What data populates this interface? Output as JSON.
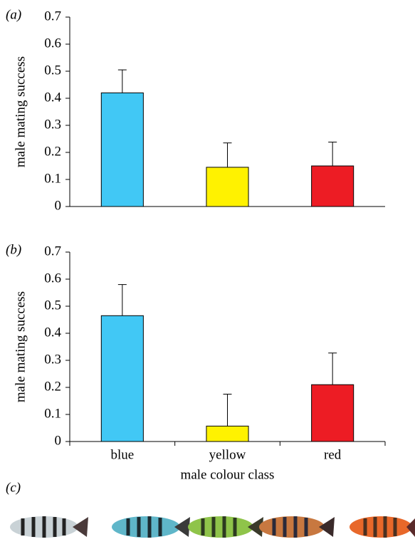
{
  "chart_data": [
    {
      "type": "bar",
      "panel_label": "(a)",
      "ylabel": "male mating success",
      "categories": [
        null,
        null,
        null
      ],
      "values": [
        0.42,
        0.145,
        0.15
      ],
      "errors": [
        0.085,
        0.09,
        0.088
      ],
      "colors": [
        "#41c8f5",
        "#fff200",
        "#ed1c24"
      ],
      "ylim": [
        0,
        0.7
      ],
      "yticks": [
        0,
        0.1,
        0.2,
        0.3,
        0.4,
        0.5,
        0.6,
        0.7
      ]
    },
    {
      "type": "bar",
      "panel_label": "(b)",
      "ylabel": "male mating success",
      "xlabel": "male colour class",
      "categories": [
        "blue",
        "yellow",
        "red"
      ],
      "values": [
        0.465,
        0.057,
        0.21
      ],
      "errors": [
        0.115,
        0.118,
        0.117
      ],
      "colors": [
        "#41c8f5",
        "#fff200",
        "#ed1c24"
      ],
      "ylim": [
        0,
        0.7
      ],
      "yticks": [
        0,
        0.1,
        0.2,
        0.3,
        0.4,
        0.5,
        0.6,
        0.7
      ]
    }
  ],
  "panel_c": {
    "label": "(c)"
  }
}
